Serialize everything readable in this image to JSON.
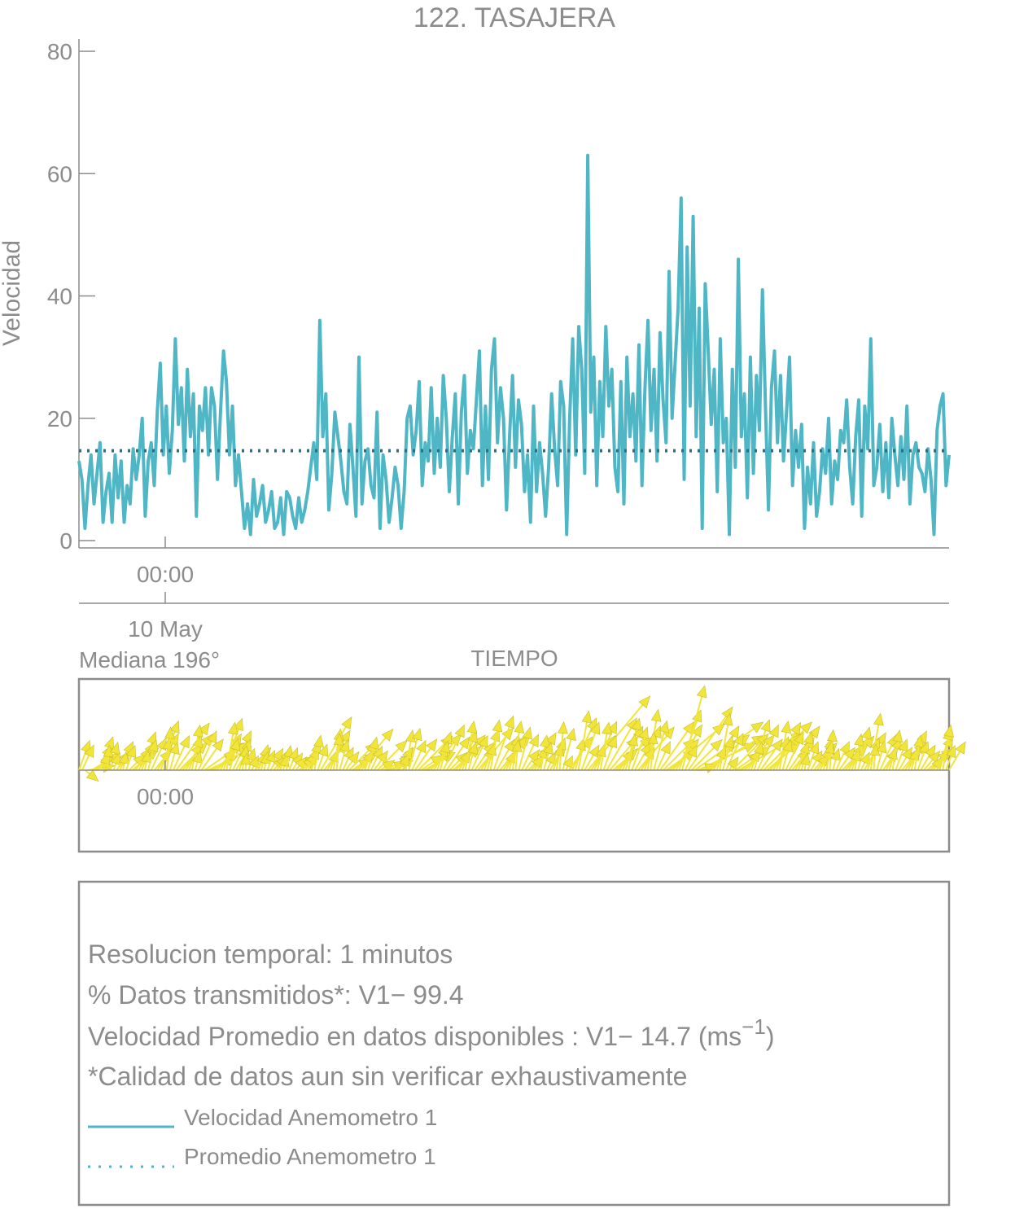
{
  "title": "122. TASAJERA",
  "colors": {
    "velocity": "#4fb6c6",
    "mean": "#2b6f86",
    "arrows": "#f2e53a",
    "axis": "#8c8c8c"
  },
  "speed_plot": {
    "ylabel": "Velocidad",
    "yticks": [
      "0",
      "20",
      "40",
      "60",
      "80"
    ],
    "xtick_time": "00:00",
    "xtick_date": "10 May",
    "xlabel": "TIEMPO"
  },
  "direction_plot": {
    "median_label": "Mediana 196°",
    "xtick_time": "00:00"
  },
  "info_box": {
    "line1": "Resolucion temporal: 1 minutos",
    "line2": "% Datos transmitidos*: V1− 99.4",
    "line3_main": "Velocidad Promedio en datos disponibles : V1− 14.7 (ms",
    "line3_sup": "−1",
    "line3_end": ")",
    "line4": "*Calidad de datos aun sin verificar exhaustivamente",
    "legend": [
      {
        "label": "Velocidad Anemometro 1",
        "style": "solid"
      },
      {
        "label": "Promedio Anemometro 1",
        "style": "dotted"
      }
    ]
  },
  "chart_data": [
    {
      "type": "line",
      "title": "122. TASAJERA",
      "xlabel": "TIEMPO",
      "ylabel": "Velocidad",
      "ylim": [
        0,
        80
      ],
      "x_index_range": [
        0,
        280
      ],
      "x_tick": {
        "index": 28,
        "label": "00:00",
        "date": "10 May"
      },
      "grid": false,
      "series": [
        {
          "name": "Velocidad Anemometro 1",
          "style": "solid",
          "values": [
            13,
            10,
            2,
            9,
            14,
            6,
            11,
            16,
            3,
            8,
            11,
            3,
            14,
            7,
            13,
            3,
            9,
            6,
            15,
            10,
            14,
            20,
            4,
            13,
            16,
            9,
            21,
            29,
            14,
            22,
            11,
            18,
            33,
            19,
            25,
            13,
            28,
            17,
            24,
            4,
            22,
            18,
            25,
            14,
            25,
            22,
            10,
            21,
            31,
            26,
            14,
            22,
            9,
            14,
            8,
            2,
            6,
            1,
            10,
            4,
            6,
            9,
            3,
            5,
            8,
            2,
            3,
            7,
            1,
            8,
            7,
            4,
            2,
            7,
            3,
            5,
            8,
            12,
            16,
            10,
            36,
            17,
            24,
            5,
            11,
            21,
            17,
            13,
            8,
            6,
            19,
            12,
            4,
            30,
            6,
            13,
            15,
            9,
            7,
            21,
            2,
            14,
            10,
            3,
            7,
            12,
            9,
            2,
            8,
            20,
            22,
            14,
            18,
            26,
            9,
            16,
            13,
            25,
            11,
            20,
            12,
            27,
            20,
            8,
            17,
            24,
            6,
            21,
            27,
            11,
            18,
            15,
            23,
            31,
            9,
            22,
            10,
            28,
            33,
            16,
            25,
            20,
            5,
            17,
            27,
            12,
            23,
            19,
            8,
            14,
            3,
            22,
            8,
            16,
            11,
            4,
            12,
            24,
            15,
            9,
            26,
            22,
            1,
            20,
            33,
            14,
            35,
            28,
            11,
            63,
            21,
            30,
            9,
            26,
            17,
            35,
            22,
            28,
            12,
            8,
            26,
            6,
            30,
            17,
            24,
            13,
            32,
            9,
            25,
            36,
            18,
            28,
            13,
            34,
            23,
            16,
            44,
            20,
            29,
            38,
            56,
            10,
            48,
            22,
            53,
            17,
            38,
            2,
            42,
            31,
            19,
            28,
            8,
            33,
            16,
            20,
            1,
            28,
            12,
            46,
            17,
            24,
            7,
            30,
            11,
            27,
            18,
            41,
            22,
            5,
            25,
            31,
            16,
            27,
            13,
            21,
            30,
            9,
            18,
            12,
            19,
            2,
            12,
            6,
            16,
            4,
            8,
            15,
            11,
            20,
            6,
            13,
            10,
            18,
            16,
            23,
            12,
            6,
            17,
            23,
            4,
            22,
            15,
            33,
            9,
            12,
            19,
            8,
            16,
            7,
            20,
            14,
            9,
            17,
            10,
            22,
            6,
            14,
            16,
            12,
            11,
            8,
            15,
            10,
            1,
            18,
            22,
            24,
            9,
            14
          ]
        },
        {
          "name": "Promedio Anemometro 1",
          "style": "dotted",
          "constant": 14.7
        }
      ]
    },
    {
      "type": "quiver",
      "title": "",
      "annotation": "Mediana 196°",
      "x_index_range": [
        0,
        280
      ],
      "x_tick": {
        "index": 28,
        "label": "00:00"
      },
      "directions_deg_from": [
        200,
        205,
        310,
        260,
        240,
        235,
        210,
        200,
        190,
        185,
        195,
        200,
        215,
        205,
        190,
        200,
        225,
        230,
        215,
        210,
        200,
        190,
        195,
        205,
        220,
        210,
        200,
        190,
        185,
        195,
        205,
        215,
        225,
        220,
        210,
        200,
        190,
        195,
        205,
        215,
        235,
        245,
        240,
        230,
        220,
        210,
        200,
        190,
        195,
        205,
        210,
        200,
        190,
        185,
        195,
        205,
        215,
        205,
        195,
        190,
        200,
        210,
        220,
        215,
        205,
        195,
        190,
        200,
        210,
        220,
        230,
        225,
        215,
        205,
        195,
        190,
        200,
        210,
        220,
        210,
        200,
        190,
        185,
        195,
        205,
        215,
        225,
        235,
        230,
        220,
        210,
        200,
        195,
        205,
        215,
        225,
        235,
        245,
        250,
        240,
        230,
        220,
        210,
        200,
        190,
        195,
        205,
        215,
        225,
        235,
        240,
        230,
        220,
        210,
        200,
        195,
        205,
        215,
        225,
        230,
        220,
        210,
        200,
        190,
        195,
        205,
        215,
        220,
        210,
        200,
        195,
        190,
        200,
        210,
        220,
        215,
        205,
        195,
        190,
        185,
        195,
        205,
        215,
        225,
        220,
        210,
        200,
        190,
        195,
        205,
        210,
        200,
        190,
        185,
        195,
        205,
        215,
        205,
        195,
        190,
        200,
        210,
        220,
        215,
        205,
        195,
        190,
        200,
        210,
        220,
        230,
        225,
        215,
        205,
        195,
        190,
        200,
        210,
        220,
        210,
        200,
        190,
        185,
        195,
        205,
        215,
        225,
        235,
        230,
        220,
        210,
        200,
        195,
        205,
        215,
        225,
        235,
        245,
        250,
        240,
        230,
        220,
        210,
        200,
        190,
        195,
        205,
        215,
        225,
        235,
        240,
        230,
        220,
        210,
        200,
        195,
        205,
        215,
        225,
        230,
        220,
        210,
        200,
        190,
        195,
        205,
        215,
        220,
        210,
        200,
        195,
        190,
        200,
        210,
        220,
        215,
        205,
        195,
        190,
        185,
        195,
        205,
        215,
        225,
        220,
        210,
        200,
        190,
        195,
        205,
        210,
        200,
        190,
        185,
        195,
        205,
        215,
        205,
        195,
        190,
        200,
        210,
        220,
        215,
        205,
        195,
        190,
        200,
        210,
        220,
        230,
        225,
        215,
        205,
        195,
        190,
        200,
        210
      ]
    }
  ]
}
